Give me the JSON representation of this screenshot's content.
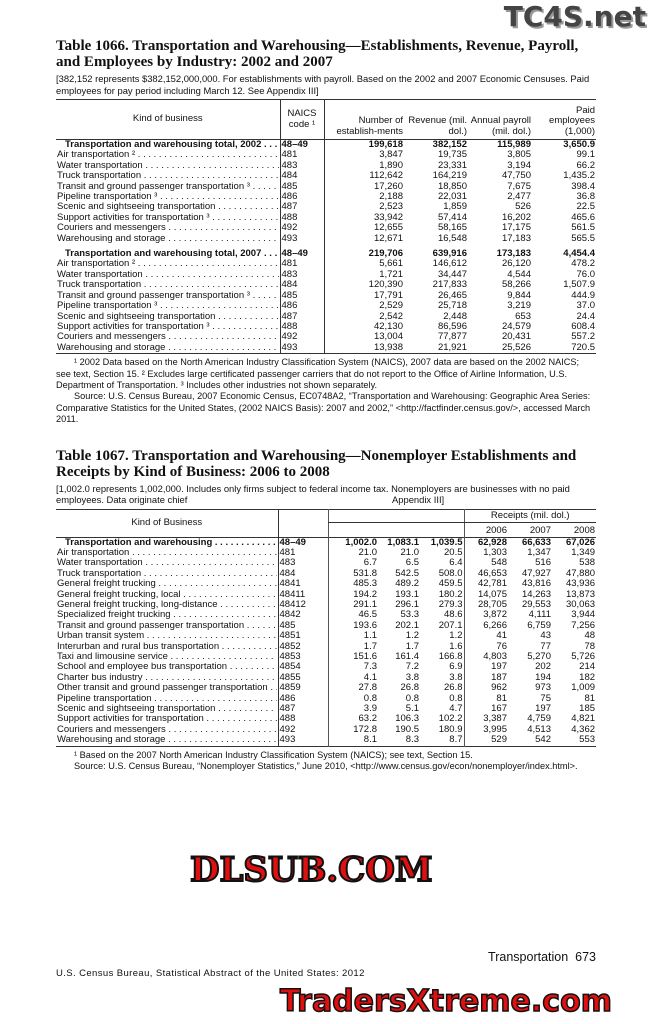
{
  "watermarks": {
    "top": "TC4S.net",
    "middle": "DLSUB.COM",
    "bottom": "TradersXtreme.com"
  },
  "t1066": {
    "title": "Table 1066. Transportation and Warehousing—Establishments, Revenue, Payroll, and Employees by Industry: 2002 and 2007",
    "note": "[382,152 represents $382,152,000,000. For establishments with payroll. Based on the 2002 and 2007 Economic Censuses. Paid employees for pay period including March 12. See Appendix III]",
    "headers": [
      "Kind of business",
      "NAICS code ¹",
      "Number of establish-ments",
      "Revenue (mil. dol.)",
      "Annual payroll (mil. dol.)",
      "Paid employees (1,000)"
    ],
    "rows": [
      {
        "bold": true,
        "kind": "Transportation and warehousing total, 2002",
        "code": "48–49",
        "v": [
          "199,618",
          "382,152",
          "115,989",
          "3,650.9"
        ]
      },
      {
        "kind": "Air transportation ²",
        "code": "481",
        "v": [
          "3,847",
          "19,735",
          "3,805",
          "99.1"
        ]
      },
      {
        "kind": "Water transportation",
        "code": "483",
        "v": [
          "1,890",
          "23,331",
          "3,194",
          "66.2"
        ]
      },
      {
        "kind": "Truck transportation",
        "code": "484",
        "v": [
          "112,642",
          "164,219",
          "47,750",
          "1,435.2"
        ]
      },
      {
        "kind": "Transit and ground passenger transportation ³",
        "code": "485",
        "v": [
          "17,260",
          "18,850",
          "7,675",
          "398.4"
        ]
      },
      {
        "kind": "Pipeline transportation ³",
        "code": "486",
        "v": [
          "2,188",
          "22,031",
          "2,477",
          "36.8"
        ]
      },
      {
        "kind": "Scenic and sightseeing transportation",
        "code": "487",
        "v": [
          "2,523",
          "1,859",
          "526",
          "22.5"
        ]
      },
      {
        "kind": "Support activities for transportation ³",
        "code": "488",
        "v": [
          "33,942",
          "57,414",
          "16,202",
          "465.6"
        ]
      },
      {
        "kind": "Couriers and messengers",
        "code": "492",
        "v": [
          "12,655",
          "58,165",
          "17,175",
          "561.5"
        ]
      },
      {
        "kind": "Warehousing and storage",
        "code": "493",
        "v": [
          "12,671",
          "16,548",
          "17,183",
          "565.5"
        ]
      },
      {
        "bold": true,
        "gap": true,
        "kind": "Transportation and warehousing total, 2007",
        "code": "48–49",
        "v": [
          "219,706",
          "639,916",
          "173,183",
          "4,454.4"
        ]
      },
      {
        "kind": "Air transportation ²",
        "code": "481",
        "v": [
          "5,661",
          "146,612",
          "26,120",
          "478.2"
        ]
      },
      {
        "kind": "Water transportation",
        "code": "483",
        "v": [
          "1,721",
          "34,447",
          "4,544",
          "76.0"
        ]
      },
      {
        "kind": "Truck transportation",
        "code": "484",
        "v": [
          "120,390",
          "217,833",
          "58,266",
          "1,507.9"
        ]
      },
      {
        "kind": "Transit and ground passenger transportation ³",
        "code": "485",
        "v": [
          "17,791",
          "26,465",
          "9,844",
          "444.9"
        ]
      },
      {
        "kind": "Pipeline transportation ³",
        "code": "486",
        "v": [
          "2,529",
          "25,718",
          "3,219",
          "37.0"
        ]
      },
      {
        "kind": "Scenic and sightseeing transportation",
        "code": "487",
        "v": [
          "2,542",
          "2,448",
          "653",
          "24.4"
        ]
      },
      {
        "kind": "Support activities for transportation ³",
        "code": "488",
        "v": [
          "42,130",
          "86,596",
          "24,579",
          "608.4"
        ]
      },
      {
        "kind": "Couriers and messengers",
        "code": "492",
        "v": [
          "13,004",
          "77,877",
          "20,431",
          "557.2"
        ]
      },
      {
        "kind": "Warehousing and storage",
        "code": "493",
        "v": [
          "13,938",
          "21,921",
          "25,526",
          "720.5"
        ]
      }
    ],
    "footnote": "¹ 2002 Data based on the North American Industry Classification System (NAICS), 2007 data are based on the 2002 NAICS; see text, Section 15. ² Excludes large certificated passenger carriers that do not report to the Office of Airline Information, U.S. Department of Transportation. ³ Includes other industries not shown separately.",
    "source": "Source: U.S. Census Bureau, 2007 Economic Census, EC0748A2, “Transportation and Warehousing: Geographic Area Series: Comparative Statistics for the United States, (2002 NAICS Basis): 2007 and 2002,” <http://factfinder.census.gov/>, accessed March 2011."
  },
  "t1067": {
    "title": "Table 1067. Transportation and Warehousing—Nonemployer Establishments and Receipts by Kind of Business: 2006 to 2008",
    "note_line1": "[1,002.0 represents 1,002,000. Includes only firms subject to federal income tax. Nonemployers are businesses with no paid",
    "note_line2a": "employees. Data originate chief",
    "note_line2b": "Appendix III]",
    "headers": {
      "kind": "Kind of Business",
      "receipts": "Receipts (mil. dol.)",
      "years": [
        "2006",
        "2007",
        "2008"
      ]
    },
    "rows": [
      {
        "bold": true,
        "kind": "Transportation and warehousing",
        "code": "48–49",
        "v": [
          "1,002.0",
          "1,083.1",
          "1,039.5",
          "62,928",
          "66,633",
          "67,026"
        ]
      },
      {
        "kind": "Air transportation",
        "code": "481",
        "v": [
          "21.0",
          "21.0",
          "20.5",
          "1,303",
          "1,347",
          "1,349"
        ]
      },
      {
        "kind": "Water transportation",
        "code": "483",
        "v": [
          "6.7",
          "6.5",
          "6.4",
          "548",
          "516",
          "538"
        ]
      },
      {
        "kind": "Truck transportation",
        "code": "484",
        "v": [
          "531.8",
          "542.5",
          "508.0",
          "46,653",
          "47,927",
          "47,880"
        ]
      },
      {
        "kind": "General freight trucking",
        "code": "4841",
        "v": [
          "485.3",
          "489.2",
          "459.5",
          "42,781",
          "43,816",
          "43,936"
        ]
      },
      {
        "kind": "General freight trucking, local",
        "code": "48411",
        "v": [
          "194.2",
          "193.1",
          "180.2",
          "14,075",
          "14,263",
          "13,873"
        ]
      },
      {
        "kind": "General freight trucking, long-distance",
        "code": "48412",
        "v": [
          "291.1",
          "296.1",
          "279.3",
          "28,705",
          "29,553",
          "30,063"
        ]
      },
      {
        "kind": "Specialized freight trucking",
        "code": "4842",
        "v": [
          "46.5",
          "53.3",
          "48.6",
          "3,872",
          "4,111",
          "3,944"
        ]
      },
      {
        "kind": "Transit and ground passenger transportation",
        "code": "485",
        "v": [
          "193.6",
          "202.1",
          "207.1",
          "6,266",
          "6,759",
          "7,256"
        ]
      },
      {
        "kind": "Urban transit system",
        "code": "4851",
        "v": [
          "1.1",
          "1.2",
          "1.2",
          "41",
          "43",
          "48"
        ]
      },
      {
        "kind": "Interurban and rural bus transportation",
        "code": "4852",
        "v": [
          "1.7",
          "1.7",
          "1.6",
          "76",
          "77",
          "78"
        ]
      },
      {
        "kind": "Taxi and limousine service",
        "code": "4853",
        "v": [
          "151.6",
          "161.4",
          "166.8",
          "4,803",
          "5,270",
          "5,726"
        ]
      },
      {
        "kind": "School and employee bus transportation",
        "code": "4854",
        "v": [
          "7.3",
          "7.2",
          "6.9",
          "197",
          "202",
          "214"
        ]
      },
      {
        "kind": "Charter bus industry",
        "code": "4855",
        "v": [
          "4.1",
          "3.8",
          "3.8",
          "187",
          "194",
          "182"
        ]
      },
      {
        "kind": "Other transit and ground passenger transportation",
        "code": "4859",
        "v": [
          "27.8",
          "26.8",
          "26.8",
          "962",
          "973",
          "1,009"
        ]
      },
      {
        "kind": "Pipeline transportation",
        "code": "486",
        "v": [
          "0.8",
          "0.8",
          "0.8",
          "81",
          "75",
          "81"
        ]
      },
      {
        "kind": "Scenic and sightseeing transportation",
        "code": "487",
        "v": [
          "3.9",
          "5.1",
          "4.7",
          "167",
          "197",
          "185"
        ]
      },
      {
        "kind": "Support activities for transportation",
        "code": "488",
        "v": [
          "63.2",
          "106.3",
          "102.2",
          "3,387",
          "4,759",
          "4,821"
        ]
      },
      {
        "kind": "Couriers and messengers",
        "code": "492",
        "v": [
          "172.8",
          "190.5",
          "180.9",
          "3,995",
          "4,513",
          "4,362"
        ]
      },
      {
        "kind": "Warehousing and storage",
        "code": "493",
        "v": [
          "8.1",
          "8.3",
          "8.7",
          "529",
          "542",
          "553"
        ]
      }
    ],
    "footnote": "¹ Based on the 2007 North American Industry Classification System (NAICS); see text, Section 15.",
    "source": "Source: U.S. Census Bureau, “Nonemployer Statistics,” June 2010, <http://www.census.gov/econ/nonemployer/index.html>."
  },
  "footer": {
    "section": "Transportation",
    "page": "673",
    "publication": "U.S. Census Bureau, Statistical Abstract of the United States: 2012"
  }
}
